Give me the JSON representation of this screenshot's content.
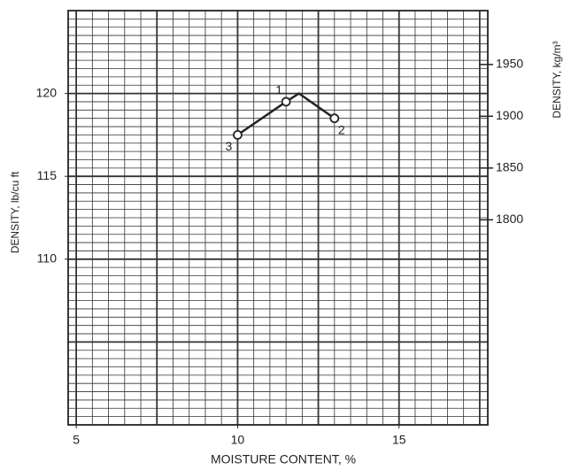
{
  "chart_data": {
    "type": "line",
    "xlabel": "MOISTURE CONTENT, %",
    "ylabel": "DENSITY, lb/cu ft",
    "y2label": "DENSITY, kg/m³",
    "xlim": [
      4.75,
      17.75
    ],
    "ylim": [
      100,
      125
    ],
    "y2lim": [
      1602,
      2002
    ],
    "xticks": [
      5,
      10,
      15
    ],
    "yticks": [
      110,
      115,
      120
    ],
    "y2ticks": [
      1800,
      1850,
      1900,
      1950
    ],
    "x_minor_ticks": [
      5,
      5.5,
      6,
      6.5,
      7,
      7.5,
      8,
      8.5,
      9,
      9.5,
      10,
      10.5,
      11,
      11.5,
      12,
      12.5,
      13,
      13.5,
      14,
      14.5,
      15,
      15.5,
      16,
      16.5,
      17,
      17.5
    ],
    "y_minor_ticks": [
      100.5,
      101,
      101.5,
      102,
      102.5,
      103,
      103.5,
      104,
      104.5,
      105,
      105.5,
      106,
      106.5,
      107,
      107.5,
      108,
      108.5,
      109,
      109.5,
      110,
      110.5,
      111,
      111.5,
      112,
      112.5,
      113,
      113.5,
      114,
      114.5,
      115,
      115.5,
      116,
      116.5,
      117,
      117.5,
      118,
      118.5,
      119,
      119.5,
      120,
      120.5,
      121,
      121.5,
      122,
      122.5,
      123,
      123.5,
      124,
      124.5
    ],
    "grid": true,
    "color": "#222222",
    "curve": {
      "x": [
        10,
        11.5,
        11.9,
        13
      ],
      "values": [
        117.5,
        119.5,
        120,
        118.5
      ]
    },
    "points": {
      "x": [
        11.5,
        13,
        10
      ],
      "values": [
        119.5,
        118.5,
        117.5
      ],
      "labels": [
        "1",
        "2",
        "3"
      ]
    }
  }
}
